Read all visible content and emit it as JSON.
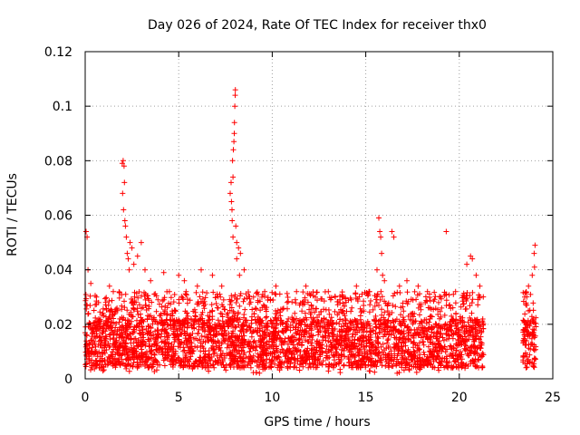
{
  "chart_data": {
    "type": "scatter",
    "title": "Day 026 of 2024, Rate Of TEC Index for receiver thx0",
    "xlabel": "GPS time / hours",
    "ylabel": "ROTI / TECUs",
    "xlim": [
      0,
      25
    ],
    "ylim": [
      0,
      0.12
    ],
    "x_ticks": [
      0,
      5,
      10,
      15,
      20,
      25
    ],
    "x_tick_labels": [
      "0",
      "5",
      "10",
      "15",
      "20",
      "25"
    ],
    "y_ticks": [
      0,
      0.02,
      0.04,
      0.06,
      0.08,
      0.1,
      0.12
    ],
    "y_tick_labels": [
      "0",
      "0.02",
      "0.04",
      "0.06",
      "0.08",
      "0.1",
      "0.12"
    ],
    "grid": true,
    "point_marker": "+",
    "point_color": "#ff0000",
    "series": [
      {
        "name": "ROTI",
        "coverage": [
          [
            0,
            21.3
          ],
          [
            23.4,
            24.1
          ]
        ],
        "dense_band": [
          0.004,
          0.022
        ],
        "points": [
          [
            0.05,
            0.054
          ],
          [
            0.1,
            0.052
          ],
          [
            0.15,
            0.04
          ],
          [
            0.3,
            0.035
          ],
          [
            0.6,
            0.03
          ],
          [
            1.1,
            0.028
          ],
          [
            1.3,
            0.034
          ],
          [
            1.5,
            0.032
          ],
          [
            1.98,
            0.079
          ],
          [
            2.03,
            0.08
          ],
          [
            2.08,
            0.078
          ],
          [
            2.1,
            0.072
          ],
          [
            2.0,
            0.068
          ],
          [
            2.05,
            0.062
          ],
          [
            2.12,
            0.058
          ],
          [
            2.15,
            0.056
          ],
          [
            2.2,
            0.052
          ],
          [
            2.25,
            0.046
          ],
          [
            2.3,
            0.044
          ],
          [
            2.35,
            0.04
          ],
          [
            2.4,
            0.05
          ],
          [
            2.5,
            0.048
          ],
          [
            2.6,
            0.042
          ],
          [
            2.8,
            0.045
          ],
          [
            3.0,
            0.05
          ],
          [
            3.2,
            0.04
          ],
          [
            3.5,
            0.036
          ],
          [
            4.2,
            0.039
          ],
          [
            4.5,
            0.032
          ],
          [
            5.0,
            0.038
          ],
          [
            5.3,
            0.036
          ],
          [
            6.0,
            0.034
          ],
          [
            6.2,
            0.04
          ],
          [
            6.8,
            0.038
          ],
          [
            7.3,
            0.034
          ],
          [
            7.75,
            0.068
          ],
          [
            7.8,
            0.072
          ],
          [
            7.85,
            0.062
          ],
          [
            7.9,
            0.074
          ],
          [
            7.88,
            0.08
          ],
          [
            7.92,
            0.084
          ],
          [
            7.95,
            0.087
          ],
          [
            7.97,
            0.09
          ],
          [
            7.98,
            0.094
          ],
          [
            8.0,
            0.1
          ],
          [
            8.02,
            0.104
          ],
          [
            8.03,
            0.106
          ],
          [
            7.82,
            0.065
          ],
          [
            7.86,
            0.058
          ],
          [
            7.9,
            0.052
          ],
          [
            8.05,
            0.056
          ],
          [
            8.1,
            0.05
          ],
          [
            8.2,
            0.048
          ],
          [
            8.3,
            0.046
          ],
          [
            8.1,
            0.044
          ],
          [
            8.25,
            0.038
          ],
          [
            8.5,
            0.04
          ],
          [
            9.0,
            0.03
          ],
          [
            9.6,
            0.032
          ],
          [
            10.2,
            0.034
          ],
          [
            10.8,
            0.028
          ],
          [
            11.3,
            0.032
          ],
          [
            11.8,
            0.034
          ],
          [
            12.3,
            0.03
          ],
          [
            13.0,
            0.032
          ],
          [
            13.8,
            0.03
          ],
          [
            14.5,
            0.034
          ],
          [
            15.7,
            0.059
          ],
          [
            15.75,
            0.054
          ],
          [
            15.8,
            0.052
          ],
          [
            15.85,
            0.046
          ],
          [
            15.6,
            0.04
          ],
          [
            15.9,
            0.038
          ],
          [
            16.4,
            0.054
          ],
          [
            16.5,
            0.052
          ],
          [
            16.0,
            0.036
          ],
          [
            16.8,
            0.034
          ],
          [
            17.2,
            0.036
          ],
          [
            17.8,
            0.034
          ],
          [
            18.3,
            0.032
          ],
          [
            19.0,
            0.03
          ],
          [
            19.3,
            0.054
          ],
          [
            19.8,
            0.032
          ],
          [
            20.4,
            0.042
          ],
          [
            20.6,
            0.045
          ],
          [
            20.7,
            0.044
          ],
          [
            20.9,
            0.038
          ],
          [
            21.1,
            0.034
          ],
          [
            23.5,
            0.03
          ],
          [
            23.7,
            0.034
          ],
          [
            23.9,
            0.038
          ],
          [
            24.0,
            0.046
          ],
          [
            24.05,
            0.049
          ],
          [
            24.02,
            0.041
          ]
        ]
      }
    ]
  }
}
